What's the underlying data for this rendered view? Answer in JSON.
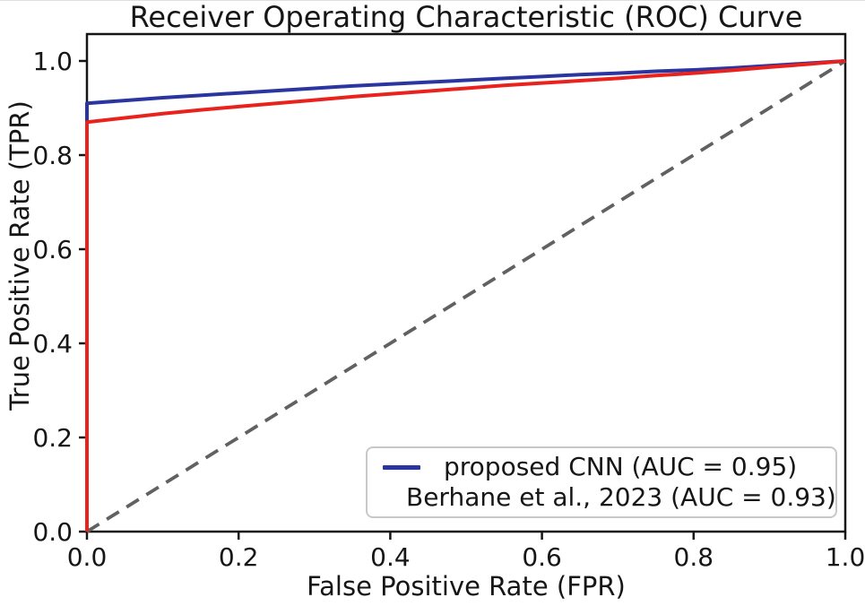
{
  "chart_data": {
    "type": "line",
    "title": "Receiver Operating Characteristic (ROC) Curve",
    "xlabel": "False Positive Rate (FPR)",
    "ylabel": "True Positive Rate (TPR)",
    "xlim": [
      0.0,
      1.0
    ],
    "ylim": [
      0.0,
      1.05
    ],
    "grid": false,
    "legend_position": "lower right",
    "xticks": [
      "0.0",
      "0.2",
      "0.4",
      "0.6",
      "0.8",
      "1.0"
    ],
    "xtick_values": [
      0,
      0.2,
      0.4,
      0.6,
      0.8,
      1.0
    ],
    "yticks": [
      "0.0",
      "0.2",
      "0.4",
      "0.6",
      "0.8",
      "1.0"
    ],
    "ytick_values": [
      0,
      0.2,
      0.4,
      0.6,
      0.8,
      1.0
    ],
    "series": [
      {
        "name": "proposed CNN (AUC = 0.95)",
        "auc": 0.95,
        "color": "#2b35a0",
        "points": [
          [
            0,
            0
          ],
          [
            0,
            0.91
          ],
          [
            0.05,
            0.916
          ],
          [
            0.1,
            0.922
          ],
          [
            0.15,
            0.927
          ],
          [
            0.2,
            0.932
          ],
          [
            0.25,
            0.937
          ],
          [
            0.3,
            0.942
          ],
          [
            0.35,
            0.947
          ],
          [
            0.4,
            0.951
          ],
          [
            0.45,
            0.955
          ],
          [
            0.5,
            0.959
          ],
          [
            0.55,
            0.963
          ],
          [
            0.6,
            0.967
          ],
          [
            0.65,
            0.971
          ],
          [
            0.7,
            0.974
          ],
          [
            0.75,
            0.978
          ],
          [
            0.8,
            0.981
          ],
          [
            0.85,
            0.985
          ],
          [
            0.9,
            0.99
          ],
          [
            0.95,
            0.995
          ],
          [
            1.0,
            1.0
          ]
        ]
      },
      {
        "name": "Berhane et al., 2023 (AUC = 0.93)",
        "auc": 0.93,
        "color": "#e9221d",
        "points": [
          [
            0,
            0
          ],
          [
            0,
            0.87
          ],
          [
            0.05,
            0.879
          ],
          [
            0.1,
            0.888
          ],
          [
            0.15,
            0.896
          ],
          [
            0.2,
            0.903
          ],
          [
            0.25,
            0.91
          ],
          [
            0.3,
            0.917
          ],
          [
            0.35,
            0.924
          ],
          [
            0.4,
            0.93
          ],
          [
            0.45,
            0.936
          ],
          [
            0.5,
            0.942
          ],
          [
            0.55,
            0.948
          ],
          [
            0.6,
            0.953
          ],
          [
            0.65,
            0.958
          ],
          [
            0.7,
            0.963
          ],
          [
            0.75,
            0.969
          ],
          [
            0.8,
            0.974
          ],
          [
            0.85,
            0.98
          ],
          [
            0.9,
            0.987
          ],
          [
            0.95,
            0.993
          ],
          [
            1.0,
            1.0
          ]
        ]
      }
    ],
    "diagonal": {
      "name": "chance-line",
      "color": "#616161",
      "dashed": true,
      "points": [
        [
          0,
          0
        ],
        [
          1,
          1
        ]
      ]
    }
  }
}
